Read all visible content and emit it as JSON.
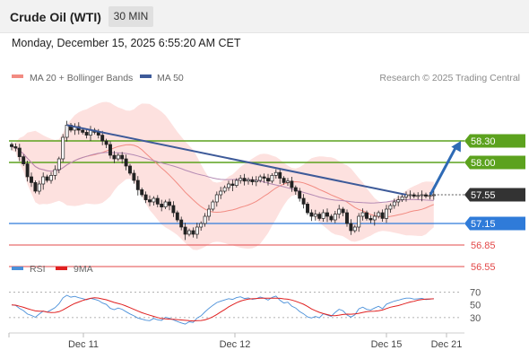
{
  "header": {
    "title": "Crude Oil (WTI)",
    "timeframe": "30 MIN",
    "datetime": "Monday, December 15, 2025 6:55:20 AM CET"
  },
  "chart_data": [
    {
      "type": "candlestick",
      "title": "Crude Oil (WTI)",
      "timeframe": "30 MIN",
      "credit": "Research © 2025 Trading Central",
      "legend": [
        {
          "name": "MA 20 + Bollinger Bands",
          "color": "#f28b82"
        },
        {
          "name": "MA 50",
          "color": "#3d5a99"
        }
      ],
      "x_labels": [
        "Dec 11",
        "Dec 12",
        "Dec 15",
        "Dec 21"
      ],
      "ylim": [
        56.4,
        58.7
      ],
      "closes": [
        58.22,
        58.2,
        58.08,
        57.98,
        57.8,
        57.72,
        57.6,
        57.7,
        57.8,
        57.75,
        57.82,
        57.9,
        58.05,
        58.35,
        58.52,
        58.45,
        58.5,
        58.45,
        58.42,
        58.38,
        58.45,
        58.42,
        58.38,
        58.3,
        58.25,
        58.1,
        58.05,
        58.1,
        58.05,
        57.95,
        57.85,
        57.75,
        57.62,
        57.55,
        57.48,
        57.45,
        57.5,
        57.42,
        57.38,
        57.45,
        57.4,
        57.3,
        57.2,
        57.1,
        57.0,
        57.05,
        57.0,
        57.1,
        57.15,
        57.25,
        57.35,
        57.45,
        57.55,
        57.6,
        57.65,
        57.7,
        57.68,
        57.75,
        57.78,
        57.74,
        57.76,
        57.73,
        57.75,
        57.8,
        57.78,
        57.74,
        57.82,
        57.86,
        57.78,
        57.72,
        57.74,
        57.65,
        57.6,
        57.5,
        57.42,
        57.3,
        57.25,
        57.28,
        57.22,
        57.3,
        57.25,
        57.2,
        57.28,
        57.35,
        57.3,
        57.15,
        57.05,
        57.1,
        57.25,
        57.3,
        57.22,
        57.2,
        57.25,
        57.3,
        57.22,
        57.35,
        57.4,
        57.45,
        57.48,
        57.52,
        57.55,
        57.55,
        57.53,
        57.54,
        57.55,
        57.53,
        57.54,
        57.55
      ],
      "resistances": [
        58.3,
        58.0
      ],
      "pivot": 57.55,
      "supports": [
        57.15,
        56.85,
        56.55
      ],
      "level_labels": [
        "58.30",
        "58.00",
        "57.55",
        "57.15",
        "56.85",
        "56.55"
      ],
      "level_colors": {
        "resistance": "#5ca21e",
        "pivot": "#333333",
        "support_1": "#2f7bd9",
        "support_lower": "#e34848"
      },
      "trendline": {
        "from_bar": 14,
        "from_value": 58.52,
        "to_bar": 100,
        "to_value": 57.55,
        "color": "#3d5a99"
      },
      "projection_arrow": {
        "from_value": 57.55,
        "to_value": 58.3,
        "color": "#2e6ab5"
      }
    },
    {
      "type": "line",
      "name": "RSI panel",
      "legend": [
        {
          "name": "RSI",
          "color": "#4a90d9"
        },
        {
          "name": "9MA",
          "color": "#e02020"
        }
      ],
      "y_labels": [
        "70",
        "50",
        "30"
      ],
      "ylim": [
        10,
        85
      ],
      "reference_lines": [
        70,
        30
      ]
    }
  ]
}
